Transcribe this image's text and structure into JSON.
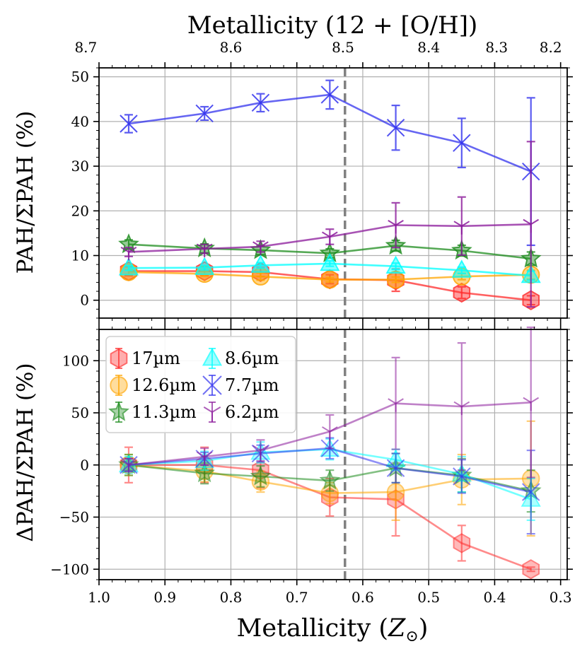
{
  "chart_data": [
    {
      "id": "top",
      "type": "line",
      "ylabel": "PAH/ΣPAH (%)",
      "xlim": [
        1.0,
        0.29
      ],
      "ylim": [
        -4,
        52
      ],
      "yticks": [
        0,
        10,
        20,
        30,
        40,
        50
      ],
      "ytick_labels": [
        "0",
        "10",
        "20",
        "30",
        "40",
        "50"
      ],
      "x": [
        0.955,
        0.84,
        0.755,
        0.65,
        0.55,
        0.45,
        0.345
      ],
      "series": [
        {
          "name": "17µm",
          "color": "#ff2b2b",
          "marker": "hexagon",
          "values": [
            6.5,
            6.5,
            6.3,
            4.7,
            4.5,
            1.7,
            0
          ],
          "err": [
            1,
            1,
            1,
            1,
            2.5,
            1.3,
            1
          ]
        },
        {
          "name": "12.6µm",
          "color": "#ffa500",
          "marker": "circle",
          "values": [
            6.3,
            5.9,
            5.3,
            4.6,
            4.6,
            5.3,
            5.7
          ],
          "err": [
            0.5,
            0.5,
            0.8,
            0.5,
            0.6,
            0.7,
            1
          ]
        },
        {
          "name": "11.3µm",
          "color": "#1e8c1e",
          "marker": "star",
          "values": [
            12.5,
            11.6,
            11.2,
            10.5,
            12.2,
            11.1,
            9.3
          ],
          "err": [
            1,
            1,
            1,
            1,
            1.2,
            1.2,
            1.5
          ]
        },
        {
          "name": "8.6µm",
          "color": "#00ffff",
          "marker": "triangle",
          "values": [
            7.2,
            7.3,
            7.8,
            8.2,
            7.6,
            6.7,
            5.5
          ],
          "err": [
            0.5,
            0.5,
            0.6,
            0.6,
            0.7,
            0.7,
            1
          ]
        },
        {
          "name": "7.7µm",
          "color": "#3333ee",
          "marker": "x",
          "values": [
            39.5,
            41.8,
            44.2,
            46.0,
            38.6,
            35.2,
            28.8
          ],
          "err": [
            2,
            1.5,
            2,
            3.2,
            5,
            5.5,
            16.5
          ]
        },
        {
          "name": "6.2µm",
          "color": "#8b1a9b",
          "marker": "tri",
          "values": [
            10.8,
            11.5,
            12.0,
            14.2,
            16.8,
            16.6,
            17.0
          ],
          "err": [
            1,
            1,
            1.2,
            1.7,
            5,
            6.5,
            18.5
          ]
        }
      ]
    },
    {
      "id": "bottom",
      "type": "line",
      "ylabel": "ΔPAH/ΣPAH (%)",
      "xlabel": "Metallicity (Z⊙)",
      "xlim": [
        1.0,
        0.29
      ],
      "ylim": [
        -110,
        130
      ],
      "yticks": [
        -100,
        -50,
        0,
        50,
        100
      ],
      "ytick_labels": [
        "−100",
        "−50",
        "0",
        "50",
        "100"
      ],
      "xticks": [
        1.0,
        0.9,
        0.8,
        0.7,
        0.6,
        0.5,
        0.4,
        0.3
      ],
      "xtick_labels": [
        "1.0",
        "0.9",
        "0.8",
        "0.7",
        "0.6",
        "0.5",
        "0.4",
        "0.3"
      ],
      "x": [
        0.955,
        0.84,
        0.755,
        0.65,
        0.55,
        0.45,
        0.345
      ],
      "series": [
        {
          "name": "17µm",
          "color": "#ff2b2b",
          "marker": "hexagon",
          "values": [
            0,
            0,
            -5,
            -31,
            -33,
            -75,
            -100
          ],
          "err": [
            17,
            17,
            17,
            18,
            35,
            17,
            2
          ]
        },
        {
          "name": "12.6µm",
          "color": "#ffa500",
          "marker": "circle",
          "values": [
            0,
            -6,
            -16,
            -27,
            -26,
            -14,
            -13
          ],
          "err": [
            10,
            10,
            10,
            10,
            27,
            24,
            55
          ]
        },
        {
          "name": "11.3µm",
          "color": "#1e8c1e",
          "marker": "star",
          "values": [
            0,
            -8,
            -11,
            -15,
            -3,
            -10,
            -25
          ],
          "err": [
            10,
            10,
            10,
            10,
            14,
            16,
            20
          ]
        },
        {
          "name": "8.6µm",
          "color": "#00ffff",
          "marker": "triangle",
          "values": [
            0,
            4,
            12,
            15,
            5,
            -9,
            -33
          ],
          "err": [
            8,
            9,
            10,
            10,
            10,
            17,
            20
          ]
        },
        {
          "name": "7.7µm",
          "color": "#3333ee",
          "marker": "x",
          "values": [
            0,
            6,
            11,
            16,
            -3,
            -11,
            -26
          ],
          "err": [
            6,
            6,
            8,
            10,
            14,
            16,
            40
          ]
        },
        {
          "name": "6.2µm",
          "color": "#8b1a9b",
          "marker": "tri",
          "values": [
            0,
            8,
            14,
            32,
            59,
            56,
            60
          ],
          "err": [
            6,
            8,
            10,
            16,
            44,
            61,
            72
          ]
        }
      ]
    }
  ],
  "top_axis": {
    "label": "Metallicity (12 + [O/H])",
    "ticks": [
      {
        "label": "8.7",
        "z": 1.02
      },
      {
        "label": "8.6",
        "z": 0.8
      },
      {
        "label": "8.5",
        "z": 0.63
      },
      {
        "label": "8.4",
        "z": 0.5
      },
      {
        "label": "8.3",
        "z": 0.397
      },
      {
        "label": "8.2",
        "z": 0.315
      }
    ]
  },
  "vline_z": 0.627,
  "legend": {
    "position": "upper-left",
    "entries": [
      "17µm",
      "8.6µm",
      "12.6µm",
      "7.7µm",
      "11.3µm",
      "6.2µm"
    ]
  }
}
